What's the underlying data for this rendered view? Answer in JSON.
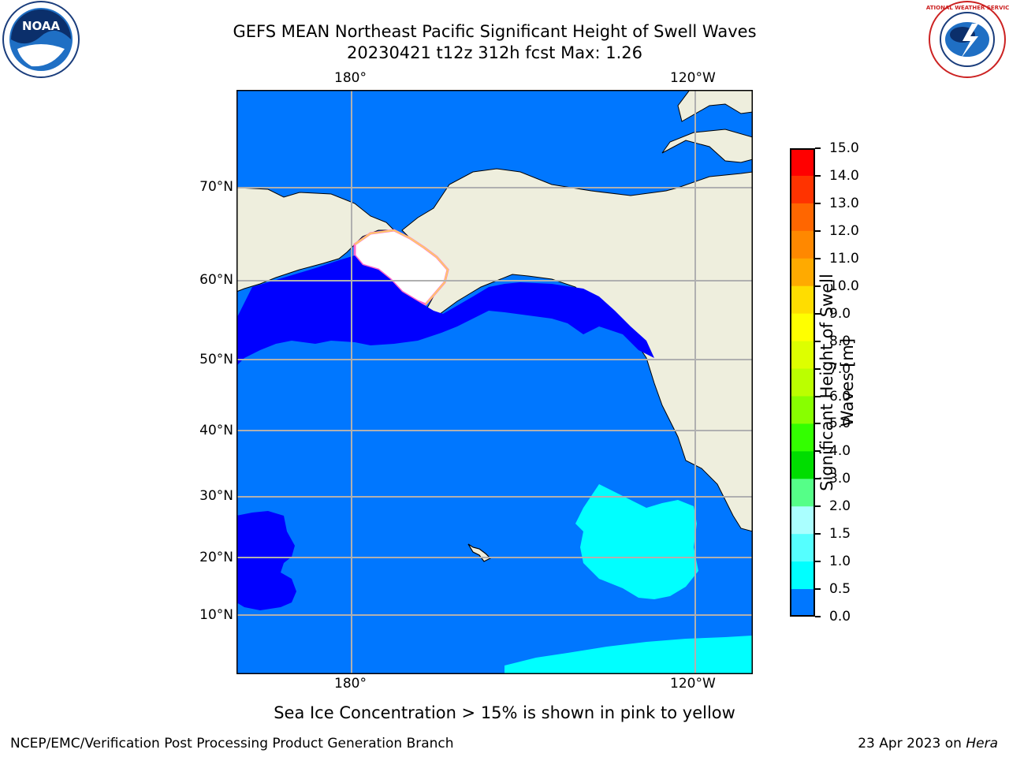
{
  "title": {
    "line1": "GEFS MEAN Northeast Pacific Significant Height of Swell Waves",
    "line2": "20230421 t12z 312h fcst   Max: 1.26"
  },
  "map": {
    "lon_labels": [
      "180°",
      "120°W"
    ],
    "lat_labels": [
      "70°N",
      "60°N",
      "50°N",
      "40°N",
      "30°N",
      "20°N",
      "10°N"
    ],
    "colors": {
      "ocean_low": "#0000ff",
      "ocean_mid": "#0077ff",
      "ocean_high": "#00ffff",
      "land": "#eeeedd",
      "ice_edge": "#ff66cc",
      "grid": "#b0b0b0"
    }
  },
  "colorbar": {
    "label_line1": "Significant Height of Swell",
    "label_line2": "Waves [m]",
    "ticks": [
      "15.0",
      "14.0",
      "13.0",
      "12.0",
      "11.0",
      "10.0",
      "9.0",
      "8.0",
      "7.0",
      "6.0",
      "5.0",
      "4.0",
      "3.0",
      "2.0",
      "1.5",
      "1.0",
      "0.5",
      "0.0"
    ],
    "colors": [
      "#ff0000",
      "#ff3300",
      "#ff6600",
      "#ff8800",
      "#ffaa00",
      "#ffdd00",
      "#ffff00",
      "#ddff00",
      "#bbff00",
      "#88ff00",
      "#33ff00",
      "#00dd00",
      "#55ff88",
      "#aaffff",
      "#55ffff",
      "#00ffff",
      "#0077ff",
      "#0000ff"
    ]
  },
  "note": "Sea Ice Concentration > 15% is shown in pink to yellow",
  "footer": {
    "left": "NCEP/EMC/Verification Post Processing Product Generation Branch",
    "right_prefix": "23 Apr 2023 on ",
    "right_host": "Hera"
  },
  "logos": {
    "noaa_text": "NOAA",
    "nws_text": "NATIONAL WEATHER SERVICE"
  }
}
